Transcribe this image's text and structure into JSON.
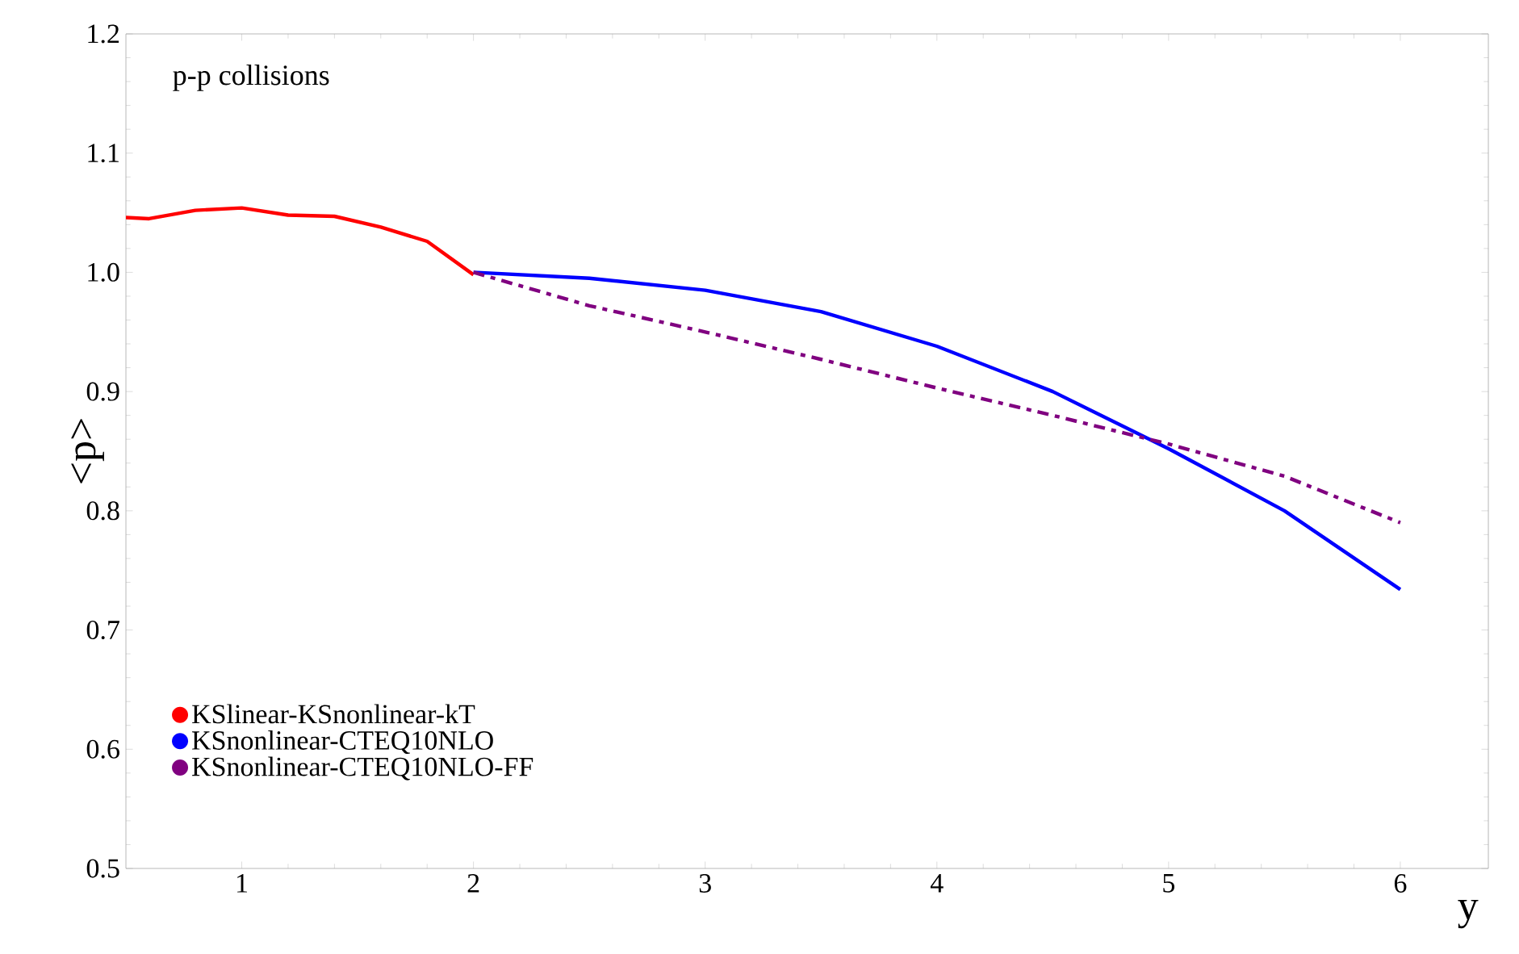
{
  "chart_data": {
    "type": "line",
    "xlabel": "y",
    "ylabel": "<p>",
    "annotations": [
      "p-p collisions"
    ],
    "xlim": [
      0.5,
      6.38
    ],
    "ylim": [
      0.5,
      1.2
    ],
    "xticks": [
      1,
      2,
      3,
      4,
      5,
      6
    ],
    "yticks": [
      0.5,
      0.6,
      0.7,
      0.8,
      0.9,
      {
        "value": 1.0,
        "label": "1.0"
      },
      1.1,
      1.2
    ],
    "legend": "bottom left",
    "grid": false,
    "marker": "none",
    "series": [
      {
        "name": "KSlinear-KSnonlinear-kT",
        "color": "#ff0000",
        "line_style": "solid",
        "x": [
          0.5,
          0.6,
          0.8,
          1.0,
          1.2,
          1.4,
          1.6,
          1.8,
          2.0
        ],
        "values": [
          1.046,
          1.045,
          1.052,
          1.054,
          1.048,
          1.047,
          1.038,
          1.026,
          0.998
        ]
      },
      {
        "name": "KSnonlinear-CTEQ10NLO",
        "color": "#0000ff",
        "line_style": "solid",
        "x": [
          2,
          2.5,
          3,
          3.5,
          4,
          4.5,
          5,
          5.5,
          6
        ],
        "values": [
          1.0,
          0.995,
          0.985,
          0.967,
          0.938,
          0.9,
          0.852,
          0.8,
          0.734
        ]
      },
      {
        "name": "KSnonlinear-CTEQ10NLO-FF",
        "color": "#800080",
        "line_style": "dashed",
        "x": [
          2,
          2.5,
          3,
          3.5,
          4,
          4.5,
          5,
          5.5,
          6
        ],
        "values": [
          1.0,
          0.972,
          0.95,
          0.927,
          0.903,
          0.88,
          0.856,
          0.829,
          0.79
        ]
      }
    ]
  }
}
